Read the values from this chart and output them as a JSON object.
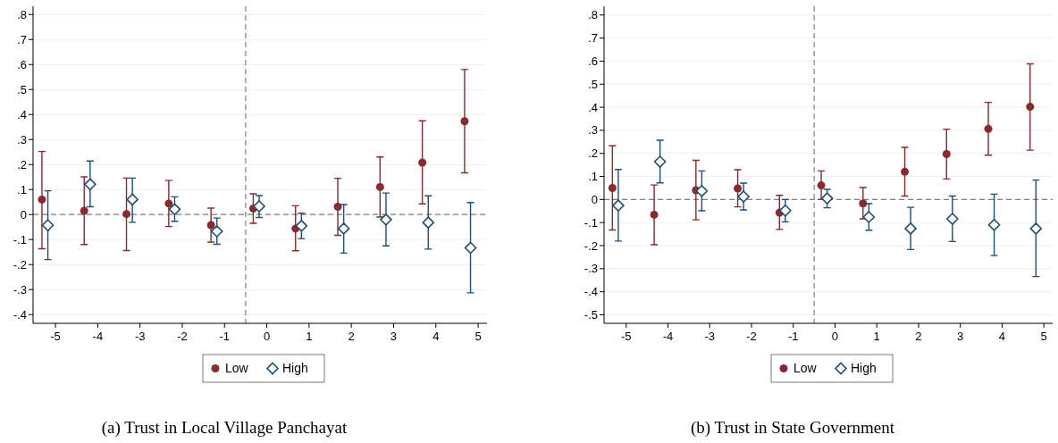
{
  "chart_data": [
    {
      "type": "scatter",
      "title": "(a) Trust in Local Village Panchayat",
      "xlim": [
        -5.53,
        5.21
      ],
      "xticks": [
        -5,
        -4,
        -3,
        -2,
        -1,
        0,
        1,
        2,
        3,
        4,
        5
      ],
      "ylim": [
        -0.435,
        0.833
      ],
      "yticks": [
        {
          "value": -0.4,
          "label": "-.4"
        },
        {
          "value": -0.3,
          "label": "-.3"
        },
        {
          "value": -0.2,
          "label": "-.2"
        },
        {
          "value": -0.1,
          "label": "-.1"
        },
        0,
        {
          "value": 0.1,
          "label": ".1"
        },
        {
          "value": 0.2,
          "label": ".2"
        },
        {
          "value": 0.3,
          "label": ".3"
        },
        {
          "value": 0.4,
          "label": ".4"
        },
        {
          "value": 0.5,
          "label": ".5"
        },
        {
          "value": 0.6,
          "label": ".6"
        },
        {
          "value": 0.7,
          "label": ".7"
        },
        {
          "value": 0.8,
          "label": ".8"
        }
      ],
      "grid": "y",
      "legend": "bottom",
      "ref_lines": [
        {
          "axis": "y",
          "value": 0,
          "line_style": "dashed",
          "color": "#808080"
        },
        {
          "axis": "x",
          "value": -0.5,
          "line_style": "dashed",
          "color": "#808080"
        }
      ],
      "series": [
        {
          "name": "Low",
          "color": "#8b2a2e",
          "marker": "circle",
          "x": [
            -5.32,
            -4.32,
            -3.32,
            -2.32,
            -1.32,
            -0.32,
            0.68,
            1.68,
            2.68,
            3.68,
            4.68
          ],
          "values": [
            0.06,
            0.015,
            0.002,
            0.044,
            -0.042,
            0.024,
            -0.056,
            0.031,
            0.11,
            0.208,
            0.373
          ],
          "errors": [
            [
              -0.137,
              0.252
            ],
            [
              -0.12,
              0.151
            ],
            [
              -0.144,
              0.146
            ],
            [
              -0.048,
              0.136
            ],
            [
              -0.11,
              0.026
            ],
            [
              -0.035,
              0.083
            ],
            [
              -0.145,
              0.035
            ],
            [
              -0.083,
              0.145
            ],
            [
              -0.01,
              0.23
            ],
            [
              0.043,
              0.375
            ],
            [
              0.167,
              0.58
            ]
          ]
        },
        {
          "name": "High",
          "color": "#1f4e79",
          "marker": "diamond",
          "x": [
            -5.18,
            -4.18,
            -3.18,
            -2.18,
            -1.18,
            -0.18,
            0.82,
            1.82,
            2.82,
            3.82,
            4.82
          ],
          "values": [
            -0.043,
            0.121,
            0.06,
            0.021,
            -0.067,
            0.033,
            -0.045,
            -0.056,
            -0.02,
            -0.032,
            -0.133
          ],
          "errors": [
            [
              -0.18,
              0.095
            ],
            [
              0.031,
              0.214
            ],
            [
              -0.031,
              0.146
            ],
            [
              -0.027,
              0.071
            ],
            [
              -0.119,
              -0.014
            ],
            [
              -0.012,
              0.076
            ],
            [
              -0.096,
              0.005
            ],
            [
              -0.154,
              0.04
            ],
            [
              -0.125,
              0.086
            ],
            [
              -0.138,
              0.075
            ],
            [
              -0.313,
              0.048
            ]
          ]
        }
      ]
    },
    {
      "type": "scatter",
      "title": "(b) Trust in State Government",
      "xlim": [
        -5.53,
        5.21
      ],
      "xticks": [
        -5,
        -4,
        -3,
        -2,
        -1,
        0,
        1,
        2,
        3,
        4,
        5
      ],
      "ylim": [
        -0.537,
        0.838
      ],
      "yticks": [
        {
          "value": -0.5,
          "label": "-.5"
        },
        {
          "value": -0.4,
          "label": "-.4"
        },
        {
          "value": -0.3,
          "label": "-.3"
        },
        {
          "value": -0.2,
          "label": "-.2"
        },
        {
          "value": -0.1,
          "label": "-.1"
        },
        0,
        {
          "value": 0.1,
          "label": ".1"
        },
        {
          "value": 0.2,
          "label": ".2"
        },
        {
          "value": 0.3,
          "label": ".3"
        },
        {
          "value": 0.4,
          "label": ".4"
        },
        {
          "value": 0.5,
          "label": ".5"
        },
        {
          "value": 0.6,
          "label": ".6"
        },
        {
          "value": 0.7,
          "label": ".7"
        },
        {
          "value": 0.8,
          "label": ".8"
        }
      ],
      "grid": "y",
      "legend": "bottom",
      "ref_lines": [
        {
          "axis": "y",
          "value": 0,
          "line_style": "dashed",
          "color": "#808080"
        },
        {
          "axis": "x",
          "value": -0.5,
          "line_style": "dashed",
          "color": "#808080"
        }
      ],
      "series": [
        {
          "name": "Low",
          "color": "#8b2a2e",
          "marker": "circle",
          "x": [
            -5.33,
            -4.33,
            -3.33,
            -2.33,
            -1.33,
            -0.33,
            0.67,
            1.67,
            2.67,
            3.67,
            4.67
          ],
          "values": [
            0.05,
            -0.066,
            0.04,
            0.048,
            -0.057,
            0.061,
            -0.017,
            0.12,
            0.197,
            0.306,
            0.402
          ],
          "errors": [
            [
              -0.132,
              0.233
            ],
            [
              -0.196,
              0.063
            ],
            [
              -0.088,
              0.17
            ],
            [
              -0.032,
              0.129
            ],
            [
              -0.13,
              0.018
            ],
            [
              0,
              0.124
            ],
            [
              -0.084,
              0.052
            ],
            [
              0.015,
              0.226
            ],
            [
              0.089,
              0.305
            ],
            [
              0.192,
              0.421
            ],
            [
              0.214,
              0.588
            ]
          ]
        },
        {
          "name": "High",
          "color": "#1f4e79",
          "marker": "diamond",
          "x": [
            -5.19,
            -4.19,
            -3.19,
            -2.19,
            -1.19,
            -0.19,
            0.81,
            1.81,
            2.81,
            3.81,
            4.81
          ],
          "values": [
            -0.026,
            0.164,
            0.037,
            0.013,
            -0.048,
            0.005,
            -0.076,
            -0.126,
            -0.084,
            -0.11,
            -0.126
          ],
          "errors": [
            [
              -0.18,
              0.13
            ],
            [
              0.072,
              0.257
            ],
            [
              -0.049,
              0.124
            ],
            [
              -0.045,
              0.071
            ],
            [
              -0.097,
              0
            ],
            [
              -0.036,
              0.044
            ],
            [
              -0.133,
              -0.018
            ],
            [
              -0.217,
              -0.034
            ],
            [
              -0.182,
              0.015
            ],
            [
              -0.243,
              0.023
            ],
            [
              -0.334,
              0.084
            ]
          ]
        }
      ]
    }
  ]
}
